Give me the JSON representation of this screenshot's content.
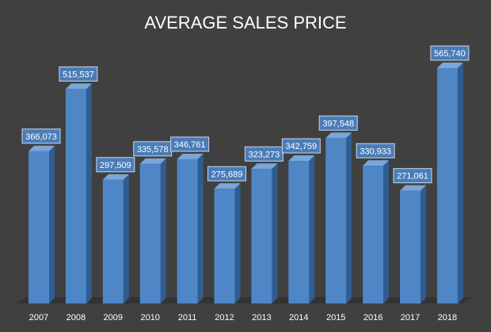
{
  "colors": {
    "background": "#404040",
    "bar_front": "#4f86c6",
    "bar_side": "#2f5d92",
    "bar_top": "#7aa6d8",
    "floor": "#333333",
    "label_box": "#4a7db8",
    "label_border": "#c8d8ec",
    "text": "#ffffff"
  },
  "chart_data": {
    "type": "bar",
    "title": "AVERAGE SALES PRICE",
    "xlabel": "",
    "ylabel": "",
    "categories": [
      "2007",
      "2008",
      "2009",
      "2010",
      "2011",
      "2012",
      "2013",
      "2014",
      "2015",
      "2016",
      "2017",
      "2018"
    ],
    "values": [
      366073,
      515537,
      297509,
      335578,
      346761,
      275689,
      323273,
      342759,
      397548,
      330933,
      271061,
      565740
    ],
    "data_labels": [
      "366,073",
      "515,537",
      "297,509",
      "335,578",
      "346,761",
      "275,689",
      "323,273",
      "342,759",
      "397,548",
      "330,933",
      "271,061",
      "565,740"
    ],
    "ylim": [
      0,
      600000
    ],
    "grid": false,
    "legend": "none",
    "style": "3d-column"
  }
}
